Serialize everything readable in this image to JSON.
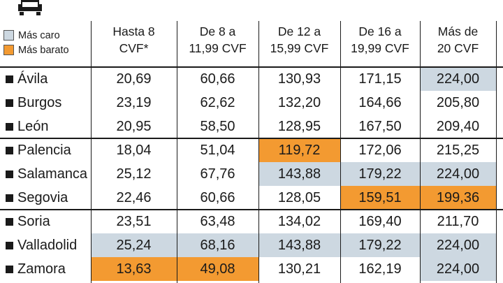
{
  "colors": {
    "expensive": "#cdd8e1",
    "cheap": "#f39a31"
  },
  "legend": [
    {
      "label": "Más caro",
      "color": "#cdd8e1"
    },
    {
      "label": "Más barato",
      "color": "#f39a31"
    }
  ],
  "headers": [
    {
      "l1": "Hasta 8",
      "l2": "CVF*"
    },
    {
      "l1": "De 8 a",
      "l2": "11,99 CVF"
    },
    {
      "l1": "De 12 a",
      "l2": "15,99 CVF"
    },
    {
      "l1": "De 16 a",
      "l2": "19,99 CVF"
    },
    {
      "l1": "Más de",
      "l2": "20 CVF"
    }
  ],
  "rows": [
    {
      "name": "Ávila",
      "values": [
        "20,69",
        "60,66",
        "130,93",
        "171,15",
        "224,00"
      ],
      "hl": [
        "",
        "",
        "",
        "",
        "caro"
      ]
    },
    {
      "name": "Burgos",
      "values": [
        "23,19",
        "62,62",
        "132,20",
        "164,66",
        "205,80"
      ],
      "hl": [
        "",
        "",
        "",
        "",
        ""
      ]
    },
    {
      "name": "León",
      "values": [
        "20,95",
        "58,50",
        "128,95",
        "167,50",
        "209,40"
      ],
      "hl": [
        "",
        "",
        "",
        "",
        ""
      ]
    },
    {
      "name": "Palencia",
      "values": [
        "18,04",
        "51,04",
        "119,72",
        "172,06",
        "215,25"
      ],
      "hl": [
        "",
        "",
        "barato",
        "",
        ""
      ]
    },
    {
      "name": "Salamanca",
      "values": [
        "25,12",
        "67,76",
        "143,88",
        "179,22",
        "224,00"
      ],
      "hl": [
        "",
        "",
        "caro",
        "caro",
        "caro"
      ]
    },
    {
      "name": "Segovia",
      "values": [
        "22,46",
        "60,66",
        "128,05",
        "159,51",
        "199,36"
      ],
      "hl": [
        "",
        "",
        "",
        "barato",
        "barato"
      ]
    },
    {
      "name": "Soria",
      "values": [
        "23,51",
        "63,48",
        "134,02",
        "169,40",
        "211,70"
      ],
      "hl": [
        "",
        "",
        "",
        "",
        ""
      ]
    },
    {
      "name": "Valladolid",
      "values": [
        "25,24",
        "68,16",
        "143,88",
        "179,22",
        "224,00"
      ],
      "hl": [
        "caro",
        "caro",
        "caro",
        "caro",
        "caro"
      ]
    },
    {
      "name": "Zamora",
      "values": [
        "13,63",
        "49,08",
        "130,21",
        "162,19",
        "224,00"
      ],
      "hl": [
        "barato",
        "barato",
        "",
        "",
        "caro"
      ]
    }
  ]
}
